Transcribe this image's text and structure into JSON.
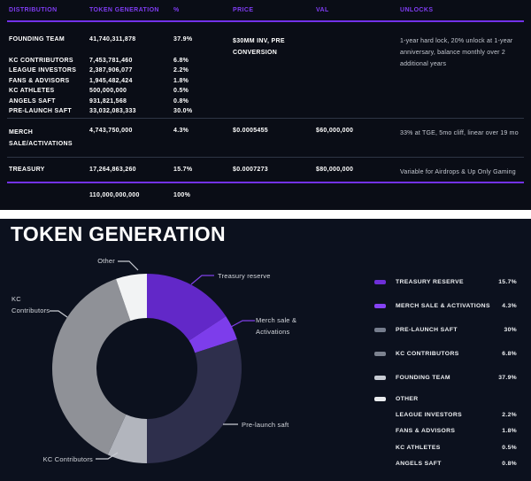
{
  "colors": {
    "top_background": "#0a0d16",
    "bottom_background": "#0c111e",
    "header_purple": "#7f3cf2",
    "divider_purple": "#7231e8"
  },
  "table": {
    "headers": [
      "DISTRIBUTION",
      "TOKEN GENERATION",
      "%",
      "PRICE",
      "VAL",
      "UNLOCKS"
    ],
    "rows": [
      {
        "name": "FOUNDING TEAM",
        "tokens": "41,740,311,878",
        "pct": "37.9%",
        "price": "$30MM INV, PRE CONVERSION",
        "val": "",
        "unlocks": "1-year hard lock, 20% unlock at 1-year anniversary, balance monthly over 2 additional years"
      },
      {
        "name": "KC CONTRIBUTORS",
        "tokens": "7,453,781,460",
        "pct": "6.8%",
        "price": "",
        "val": "",
        "unlocks": ""
      },
      {
        "name": "LEAGUE INVESTORS",
        "tokens": "2,387,906,077",
        "pct": "2.2%",
        "price": "",
        "val": "",
        "unlocks": ""
      },
      {
        "name": "FANS & ADVISORS",
        "tokens": "1,945,482,424",
        "pct": "1.8%",
        "price": "",
        "val": "",
        "unlocks": ""
      },
      {
        "name": "KC ATHLETES",
        "tokens": "500,000,000",
        "pct": "0.5%",
        "price": "",
        "val": "",
        "unlocks": ""
      },
      {
        "name": "ANGELS SAFT",
        "tokens": "931,821,568",
        "pct": "0.8%",
        "price": "",
        "val": "",
        "unlocks": ""
      },
      {
        "name": "PRE-LAUNCH SAFT",
        "tokens": "33,032,083,333",
        "pct": "30.0%",
        "price": "",
        "val": "",
        "unlocks": ""
      },
      {
        "name": "MERCH SALE/ACTIVATIONS",
        "tokens": "4,743,750,000",
        "pct": "4.3%",
        "price": "$0.0005455",
        "val": "$60,000,000",
        "unlocks": "33% at TGE, 5mo cliff, linear over 19 mo"
      },
      {
        "name": "TREASURY",
        "tokens": "17,264,863,260",
        "pct": "15.7%",
        "price": "$0.0007273",
        "val": "$80,000,000",
        "unlocks": "Variable for Airdrops & Up Only Gaming"
      }
    ],
    "total": {
      "tokens": "110,000,000,000",
      "pct": "100%"
    }
  },
  "chart": {
    "title": "TOKEN GENERATION",
    "callouts": {
      "other": "Other",
      "treasury": "Treasury reserve",
      "merch": "Merch sale &\nActivations",
      "prelaunch": "Pre-launch saft",
      "kc_bottom": "KC Contributors",
      "kc_left": "KC\nContributors"
    },
    "legend": [
      {
        "label": "TREASURY RESERVE",
        "value": "15.7%",
        "swatch": "#6e2fd8"
      },
      {
        "label": "MERCH SALE & ACTIVATIONS",
        "value": "4.3%",
        "swatch": "#8542f5"
      },
      {
        "label": "PRE-LAUNCH SAFT",
        "value": "30%",
        "swatch": "#767d8d"
      },
      {
        "label": "KC CONTRIBUTORS",
        "value": "6.8%",
        "swatch": "#7c828f"
      },
      {
        "label": "FOUNDING TEAM",
        "value": "37.9%",
        "swatch": "#c7cbd3"
      },
      {
        "label": "OTHER",
        "value": "",
        "swatch": "#e9ebee"
      },
      {
        "label": "LEAGUE INVESTORS",
        "value": "2.2%"
      },
      {
        "label": "FANS & ADVISORS",
        "value": "1.8%"
      },
      {
        "label": "KC ATHLETES",
        "value": "0.5%"
      },
      {
        "label": "ANGELS SAFT",
        "value": "0.8%"
      }
    ]
  },
  "chart_data": [
    {
      "type": "table",
      "title": "Token distribution table",
      "columns": [
        "DISTRIBUTION",
        "TOKEN GENERATION",
        "%",
        "PRICE",
        "VAL",
        "UNLOCKS"
      ],
      "rows": [
        [
          "FOUNDING TEAM",
          "41,740,311,878",
          "37.9%",
          "$30MM INV, PRE CONVERSION",
          "",
          "1-year hard lock, 20% unlock at 1-year anniversary, balance monthly over 2 additional years"
        ],
        [
          "KC CONTRIBUTORS",
          "7,453,781,460",
          "6.8%",
          "",
          "",
          ""
        ],
        [
          "LEAGUE INVESTORS",
          "2,387,906,077",
          "2.2%",
          "",
          "",
          ""
        ],
        [
          "FANS & ADVISORS",
          "1,945,482,424",
          "1.8%",
          "",
          "",
          ""
        ],
        [
          "KC ATHLETES",
          "500,000,000",
          "0.5%",
          "",
          "",
          ""
        ],
        [
          "ANGELS SAFT",
          "931,821,568",
          "0.8%",
          "",
          "",
          ""
        ],
        [
          "PRE-LAUNCH SAFT",
          "33,032,083,333",
          "30.0%",
          "",
          "",
          ""
        ],
        [
          "MERCH SALE/ACTIVATIONS",
          "4,743,750,000",
          "4.3%",
          "$0.0005455",
          "$60,000,000",
          "33% at TGE, 5mo cliff, linear over 19 mo"
        ],
        [
          "TREASURY",
          "17,264,863,260",
          "15.7%",
          "$0.0007273",
          "$80,000,000",
          "Variable for Airdrops & Up Only Gaming"
        ],
        [
          "",
          "110,000,000,000",
          "100%",
          "",
          "",
          ""
        ]
      ]
    },
    {
      "type": "pie",
      "donut": true,
      "title": "TOKEN GENERATION",
      "start_angle_deg": 0,
      "direction": "clockwise",
      "legend_position": "right",
      "slices": [
        {
          "label": "Treasury reserve",
          "value": 15.7,
          "color": "#6228c8"
        },
        {
          "label": "Merch sale & Activations",
          "value": 4.3,
          "color": "#7d3deb"
        },
        {
          "label": "Pre-launch saft",
          "value": 30,
          "color": "#2e2f4c"
        },
        {
          "label": "KC Contributors",
          "value": 6.8,
          "color": "#b2b5bd"
        },
        {
          "label": "Founding team",
          "value": 37.9,
          "color": "#8f9197"
        },
        {
          "label": "Other",
          "value": 5.3,
          "color": "#f2f3f4"
        }
      ]
    }
  ]
}
